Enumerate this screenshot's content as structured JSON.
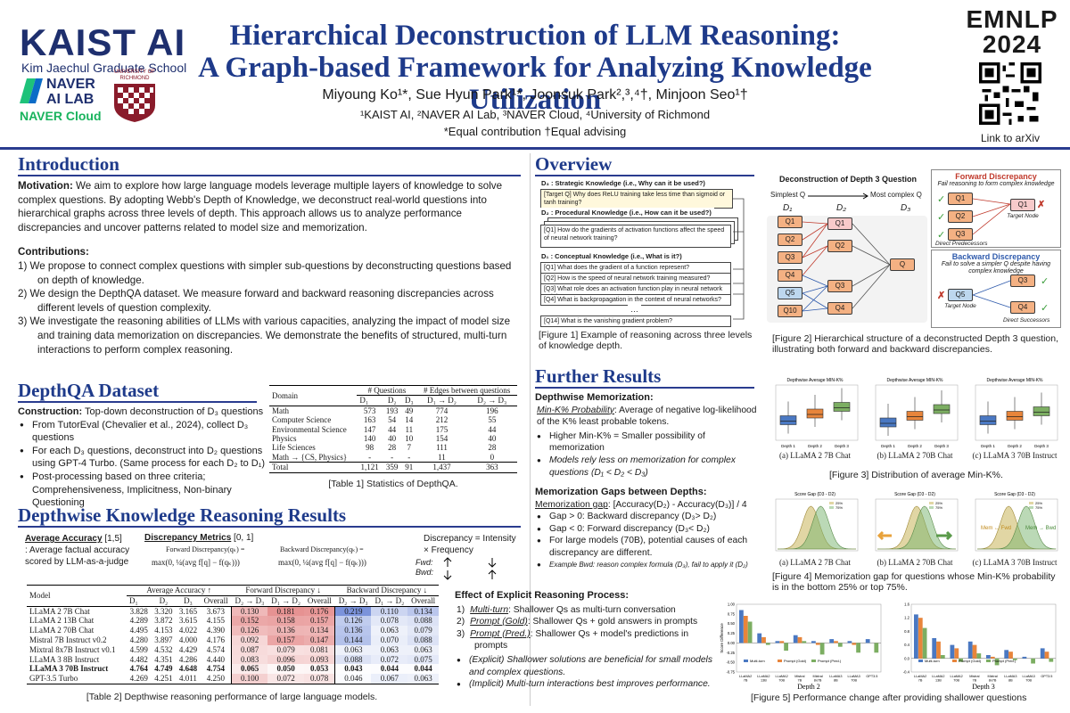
{
  "header": {
    "kaist_logo": "KAIST AI",
    "kaist_sub": "Kim Jaechul Graduate School",
    "naver_line1": "NAVER",
    "naver_line2": "AI LAB",
    "naver_cloud": "NAVER Cloud",
    "richmond": "UNIVERSITY OF RICHMOND",
    "title_line1": "Hierarchical Deconstruction of LLM Reasoning:",
    "title_line2": "A Graph-based Framework for Analyzing Knowledge Utilization",
    "authors": "Miyoung Ko¹*, Sue Hyun Park¹*, Joonsuk Park²,³,⁴†, Minjoon Seo¹†",
    "affiliations": "¹KAIST AI, ²NAVER AI Lab, ³NAVER Cloud, ⁴University of Richmond",
    "contribution_note": "*Equal contribution †Equal advising",
    "conference_line1": "EMNLP",
    "conference_line2": "2024",
    "qr_label": "Link to arXiv"
  },
  "introduction": {
    "title": "Introduction",
    "motivation_label": "Motivation:",
    "motivation_text": " We aim to explore how large language models leverage multiple layers of knowledge to solve complex questions. By adopting Webb's Depth of Knowledge, we deconstruct real-world questions into hierarchical graphs across three levels of depth. This approach allows us to analyze performance discrepancies and uncover patterns related to model size and memorization.",
    "contributions_label": "Contributions:",
    "contributions": [
      "1)  We propose to connect complex questions with simpler sub-questions by deconstructing questions based on depth of knowledge.",
      "2)  We design the DepthQA dataset. We measure forward and backward reasoning discrepancies across different levels of question complexity.",
      "3)  We investigate the reasoning abilities of LLMs with various capacities, analyzing the impact of model size and training data memorization on discrepancies. We demonstrate the benefits of structured, multi-turn interactions to perform complex reasoning."
    ]
  },
  "dataset": {
    "title": "DepthQA Dataset",
    "construction_label": "Construction:",
    "construction_text": " Top-down deconstruction of D₃ questions",
    "bullets": [
      "From TutorEval (Chevalier et al., 2024), collect D₃ questions",
      "For each D₃ questions, deconstruct into D₂ questions using GPT-4 Turbo. (Same process for each D₂ to D₁)",
      "Post-processing based on three criteria; Comprehensiveness, Implicitness, Non-binary Questioning"
    ],
    "table": {
      "headers": [
        "Domain",
        "# Questions",
        "# Edges between questions"
      ],
      "subheaders": [
        "D₁",
        "D₂",
        "D₃",
        "D₁ → D₂",
        "D₂ → D₃"
      ],
      "rows": [
        [
          "Math",
          "573",
          "193",
          "49",
          "774",
          "196"
        ],
        [
          "Computer Science",
          "163",
          "54",
          "14",
          "212",
          "55"
        ],
        [
          "Environmental Science",
          "147",
          "44",
          "11",
          "175",
          "44"
        ],
        [
          "Physics",
          "140",
          "40",
          "10",
          "154",
          "40"
        ],
        [
          "Life Sciences",
          "98",
          "28",
          "7",
          "111",
          "28"
        ],
        [
          "Math → {CS, Physics}",
          "-",
          "-",
          "-",
          "11",
          "0"
        ]
      ],
      "total": [
        "Total",
        "1,121",
        "359",
        "91",
        "1,437",
        "363"
      ],
      "caption": "[Table 1] Statistics of DepthQA."
    }
  },
  "results": {
    "title": "Depthwise Knowledge Reasoning Results",
    "avg_acc_label": "Average Accuracy",
    "avg_acc_range": " [1,5]",
    "avg_acc_desc": ": Average factual accuracy scored by LLM-as-a-judge",
    "disc_label": "Discrepancy Metrics",
    "disc_range": " [0, 1]",
    "forward_label": "Forward Discrepancy(qₖ) =",
    "backward_label": "Backward Discrepancy(qₖ) =",
    "formula_fwd": "max(0, ¼(avg f[q] − f(qₖ)))",
    "formula_bwd": "max(0, ¼(avg f[q] − f(qₖ)))",
    "disc_eq": "Discrepancy = Intensity × Frequency",
    "fwd": "Fwd:",
    "bwd": "Bwd:",
    "table": {
      "col_model": "Model",
      "group_acc": "Average Accuracy ↑",
      "group_fwd": "Forward Discrepancy ↓",
      "group_bwd": "Backward Discrepancy ↓",
      "sub_acc": [
        "D₁",
        "D₂",
        "D₃",
        "Overall"
      ],
      "sub_fwd": [
        "D₂ → D₃",
        "D₁ → D₂",
        "Overall"
      ],
      "sub_bwd": [
        "D₂ → D₃",
        "D₁ → D₂",
        "Overall"
      ],
      "rows": [
        [
          "LLaMA 2 7B Chat",
          "3.828",
          "3.320",
          "3.165",
          "3.673",
          "0.130",
          "0.181",
          "0.176",
          "0.219",
          "0.110",
          "0.134"
        ],
        [
          "LLaMA 2 13B Chat",
          "4.289",
          "3.872",
          "3.615",
          "4.155",
          "0.152",
          "0.158",
          "0.157",
          "0.126",
          "0.078",
          "0.088"
        ],
        [
          "LLaMA 2 70B Chat",
          "4.495",
          "4.153",
          "4.022",
          "4.390",
          "0.126",
          "0.136",
          "0.134",
          "0.136",
          "0.063",
          "0.079"
        ],
        [
          "Mistral 7B Instruct v0.2",
          "4.280",
          "3.897",
          "4.000",
          "4.176",
          "0.092",
          "0.157",
          "0.147",
          "0.144",
          "0.070",
          "0.088"
        ],
        [
          "Mixtral 8x7B Instruct v0.1",
          "4.599",
          "4.532",
          "4.429",
          "4.574",
          "0.087",
          "0.079",
          "0.081",
          "0.063",
          "0.063",
          "0.063"
        ],
        [
          "LLaMA 3 8B Instruct",
          "4.482",
          "4.351",
          "4.286",
          "4.440",
          "0.083",
          "0.096",
          "0.093",
          "0.088",
          "0.072",
          "0.075"
        ],
        [
          "LLaMA 3 70B Instruct",
          "4.764",
          "4.749",
          "4.648",
          "4.754",
          "0.065",
          "0.050",
          "0.053",
          "0.043",
          "0.044",
          "0.044"
        ],
        [
          "GPT-3.5 Turbo",
          "4.269",
          "4.251",
          "4.011",
          "4.250",
          "0.100",
          "0.072",
          "0.078",
          "0.046",
          "0.067",
          "0.063"
        ]
      ],
      "caption": "[Table 2] Depthwise reasoning performance of large language models."
    }
  },
  "overview": {
    "title": "Overview",
    "strategic": "D₃ : Strategic Knowledge (i.e., Why can it be used?)",
    "target_q": "[Target Q]  Why does ReLU training take less time than sigmoid or tanh training?",
    "procedural": "D₂ : Procedural Knowledge (i.e., How can it be used?)",
    "q1_d2": "[Q1]  How do the gradients of activation functions affect the speed of neural network training?",
    "conceptual": "D₁ : Conceptual Knowledge (i.e., What is it?)",
    "d1_questions": [
      "[Q1]  What does the gradient of a function represent?",
      "[Q2]  How is the speed of neural network training measured?",
      "[Q3]  What role does an activation function play in neural network training?",
      "[Q4]  What is backpropagation in the context of neural networks?",
      "[Q14]  What is the vanishing gradient problem?"
    ],
    "ellipsis": "…",
    "fig1_caption": "[Figure 1] Example of reasoning across three levels of knowledge depth.",
    "fig2_title": "Deconstruction of Depth 3 Question",
    "simplest": "Simplest Q",
    "most_complex": "Most complex Q",
    "d1": "D₁",
    "d2": "D₂",
    "d3": "D₃",
    "fig2_caption": "[Figure 2] Hierarchical structure of a deconstructed Depth 3 question, illustrating both forward and backward discrepancies.",
    "forward_title": "Forward Discrepancy",
    "forward_desc": "Fail reasoning to form complex knowledge",
    "target_node": "Target Node",
    "direct_pred": "Direct Predecessors",
    "backward_title": "Backward Discrepancy",
    "backward_desc": "Fail to solve a simpler Q despite having complex knowledge",
    "direct_succ": "Direct Successors"
  },
  "further": {
    "title": "Further Results",
    "mem_title": "Depthwise Memorization:",
    "mink_label": "Min-K% Probability",
    "mink_text": ": Average of negative log-likelihood of the K% least probable tokens.",
    "mem_bullets": [
      "Higher Min-K% = Smaller possibility of memorization",
      "Models rely less on memorization for complex questions (D₁ < D₂ < D₃)"
    ],
    "fig3_titles": [
      "Depthwise Average MIN-K%",
      "Depthwise Average MIN-K%",
      "Depthwise Average MIN-K%"
    ],
    "fig3_sublabels": [
      "(a) LLaMA 2 7B Chat",
      "(b) LLaMA 2 70B Chat",
      "(c) LLaMA 3 70B Instruct"
    ],
    "fig3_caption": "[Figure 3] Distribution of average Min-K%.",
    "gap_title": "Memorization Gaps between Depths:",
    "gap_label": "Memorization gap",
    "gap_formula": ": [Accuracy(D₂) - Accuracy(D₃)] / 4",
    "gap_bullets": [
      "Gap > 0: Backward discrepancy (D₃> D₂)",
      "Gap < 0: Forward discrepancy (D₃< D₂)",
      "For large models (70B), potential causes of each discrepancy are different."
    ],
    "gap_example": "Example Bwd: reason complex formula (D₃), fail to apply it (D₂)",
    "fig4_titles": [
      "Score Gap (D3 - D2)",
      "Score Gap (D3 - D2)",
      "Score Gap (D3 - D2)"
    ],
    "fig4_legend": [
      "25%",
      "75%"
    ],
    "fig4_sublabels": [
      "(a) LLaMA 2 7B Chat",
      "(b) LLaMA 2 70B Chat",
      "(c) LLaMA 3 70B Instruct"
    ],
    "mem_fwd": "Mem ← Fwd",
    "mem_bwd": "Mem → Bwd",
    "fig4_caption": "[Figure 4] Memorization gap for questions whose Min-K% probability is in the bottom 25% or top 75%.",
    "explicit_title": "Effect of Explicit Reasoning Process:",
    "explicit_items": [
      [
        "1)",
        "Multi-turn",
        ": Shallower Qs as multi-turn conversation"
      ],
      [
        "2)",
        "Prompt (Gold)",
        ": Shallower Qs + gold answers in prompts"
      ],
      [
        "3)",
        "Prompt (Pred.)",
        ": Shallower Qs + model's predictions in prompts"
      ]
    ],
    "explicit_bullets": [
      "(Explicit) Shallower solutions are beneficial for small models and complex questions.",
      "(Implicit) Multi-turn interactions best improves performance."
    ],
    "fig5_legend": [
      "Multi-turn",
      "Prompt (Gold)",
      "Prompt (Pred.)"
    ],
    "fig5_depth2": "Depth 2",
    "fig5_depth3": "Depth 3",
    "fig5_ylabel": "Score Difference",
    "fig5_caption": "[Figure 5] Performance change after providing shallower questions"
  },
  "chart_data": [
    {
      "type": "bar",
      "title": "Depth 2",
      "ylabel": "Score Difference",
      "categories": [
        "LLaMA2 7B",
        "LLaMA2 13B",
        "LLaMA2 70B",
        "Mistral 7B",
        "Mixtral 8x7B",
        "LLaMA3 8B",
        "LLaMA3 70B",
        "GPT3.5"
      ],
      "ylim": [
        -0.75,
        1.0
      ],
      "yticks": [
        "1.00",
        "0.75",
        "0.50",
        "0.25",
        "0.00",
        "-0.25",
        "-0.50",
        "-0.75"
      ],
      "series": [
        {
          "name": "Multi-turn",
          "values": [
            0.85,
            0.25,
            0.05,
            0.2,
            0.05,
            0.1,
            0.05,
            0.1
          ]
        },
        {
          "name": "Prompt (Gold)",
          "values": [
            0.7,
            0.15,
            0.05,
            0.15,
            -0.05,
            0.05,
            -0.05,
            0.0
          ]
        },
        {
          "name": "Prompt (Pred.)",
          "values": [
            0.55,
            -0.05,
            -0.2,
            0.05,
            -0.3,
            -0.1,
            -0.25,
            -0.25
          ]
        }
      ]
    },
    {
      "type": "bar",
      "title": "Depth 3",
      "ylabel": "",
      "categories": [
        "LLaMA2 7B",
        "LLaMA2 13B",
        "LLaMA2 70B",
        "Mistral 7B",
        "Mixtral 8x7B",
        "LLaMA3 8B",
        "LLaMA3 70B",
        "GPT3.5"
      ],
      "ylim": [
        -0.4,
        1.6
      ],
      "yticks": [
        "1.6",
        "1.4",
        "1.2",
        "1.0",
        "0.8",
        "0.6",
        "0.4",
        "0.2",
        "0.0",
        "-0.2",
        "-0.4"
      ],
      "series": [
        {
          "name": "Multi-turn",
          "values": [
            1.3,
            0.6,
            0.4,
            0.5,
            0.1,
            0.25,
            0.05,
            0.3
          ]
        },
        {
          "name": "Prompt (Gold)",
          "values": [
            1.2,
            0.5,
            0.3,
            0.4,
            0.05,
            0.2,
            0.0,
            0.2
          ]
        },
        {
          "name": "Prompt (Pred.)",
          "values": [
            0.9,
            0.1,
            -0.1,
            0.15,
            -0.2,
            -0.05,
            -0.15,
            -0.1
          ]
        }
      ]
    }
  ],
  "colors": {
    "accent": "#1e3a8a",
    "red_cell": "#e8a7a7",
    "blue_cell": "#a7b9e8",
    "bar_blue": "#4a78c2",
    "bar_orange": "#e8853b",
    "bar_green": "#7cae62"
  }
}
